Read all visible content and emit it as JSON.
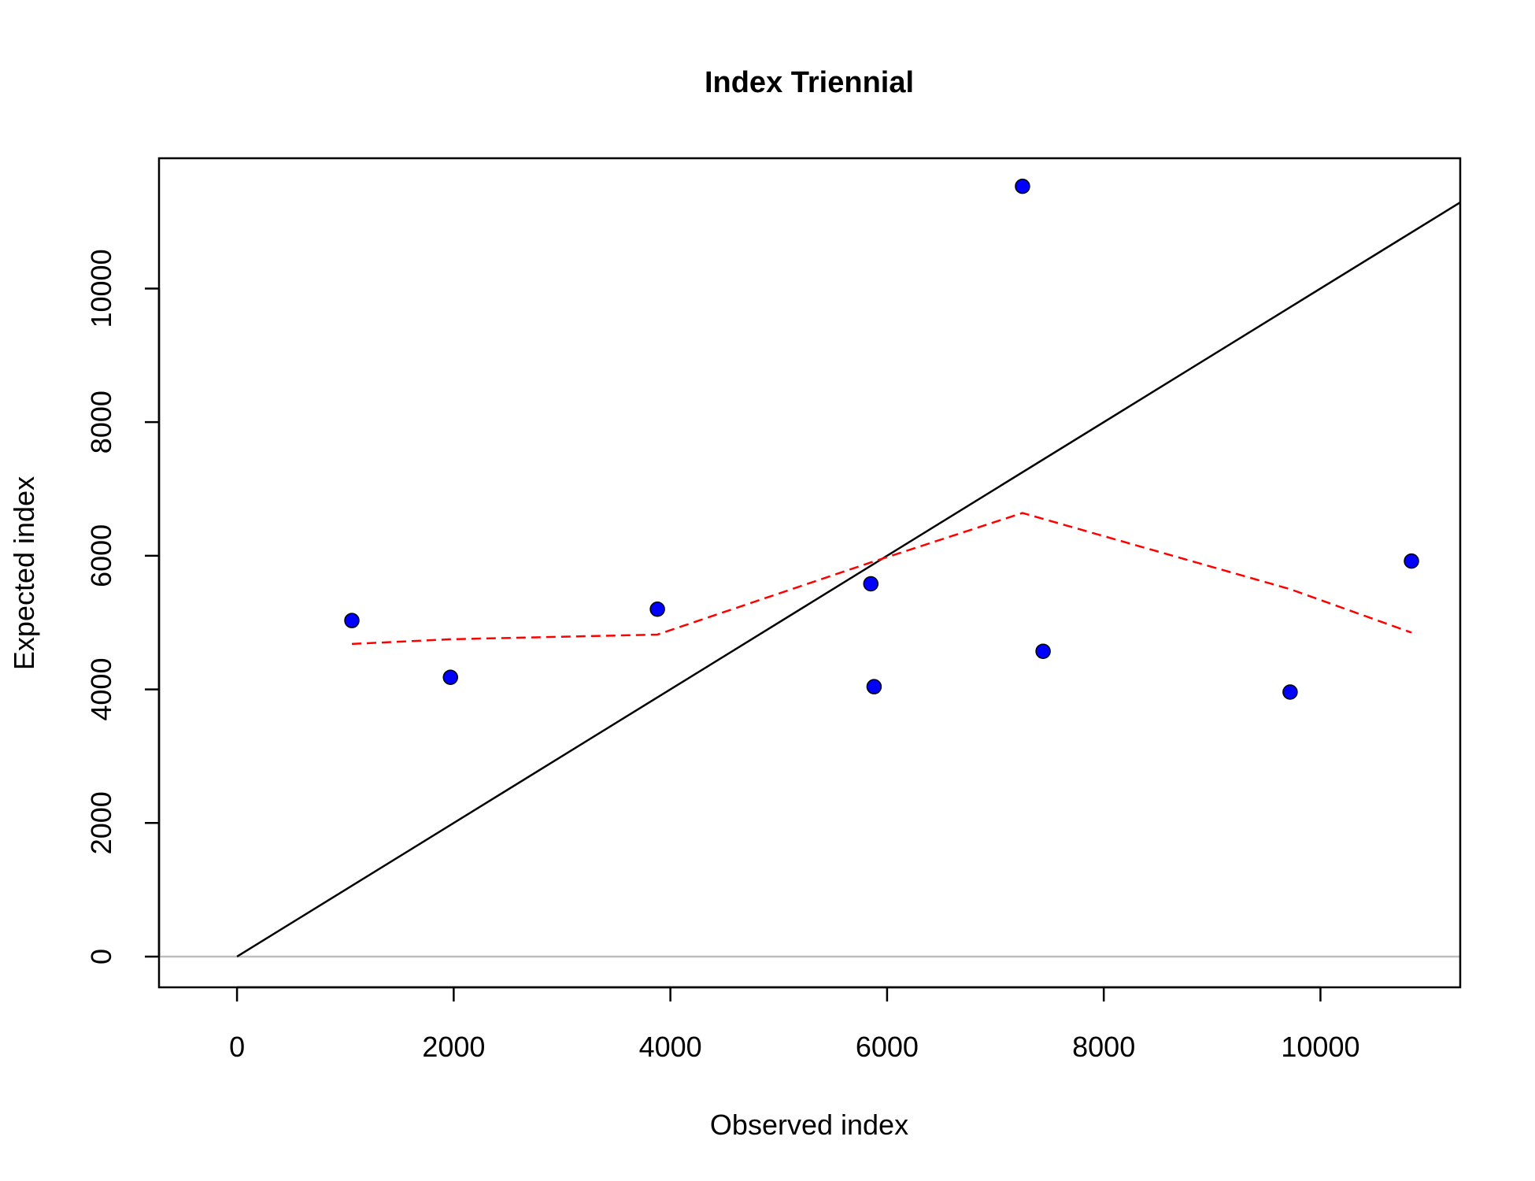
{
  "chart_data": {
    "type": "scatter",
    "title": "Index Triennial",
    "xlabel": "Observed index",
    "ylabel": "Expected index",
    "xlim": [
      -720,
      11290
    ],
    "ylim": [
      -460,
      11950
    ],
    "xticks": [
      0,
      2000,
      4000,
      6000,
      8000,
      10000
    ],
    "yticks": [
      0,
      2000,
      4000,
      6000,
      8000,
      10000
    ],
    "grid": false,
    "points": [
      {
        "x": 1060,
        "y": 5030
      },
      {
        "x": 1970,
        "y": 4180
      },
      {
        "x": 3880,
        "y": 5200
      },
      {
        "x": 5850,
        "y": 5580
      },
      {
        "x": 5880,
        "y": 4040
      },
      {
        "x": 7250,
        "y": 11530
      },
      {
        "x": 7440,
        "y": 4570
      },
      {
        "x": 9720,
        "y": 3960
      },
      {
        "x": 10840,
        "y": 5920
      }
    ],
    "reference_line": {
      "slope": 1,
      "intercept": 0,
      "x_start": 0
    },
    "smoother": {
      "x": [
        1060,
        1970,
        3880,
        5850,
        7250,
        9720,
        10840
      ],
      "y": [
        4680,
        4750,
        4820,
        5900,
        6640,
        5500,
        4850
      ]
    },
    "zero_line": {
      "y": 0
    },
    "colors": {
      "points_fill": "#0000ff",
      "points_stroke": "#000000",
      "smoother": "#ff0000",
      "reference": "#000000",
      "zero_line": "#bebebe"
    }
  }
}
